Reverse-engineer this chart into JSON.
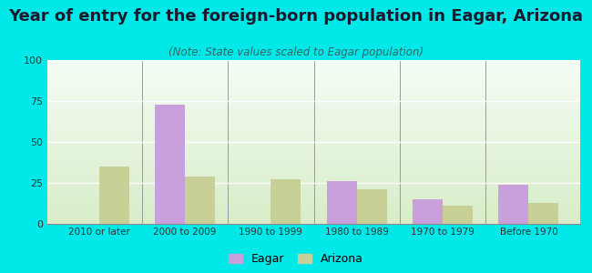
{
  "title": "Year of entry for the foreign-born population in Eagar, Arizona",
  "subtitle": "(Note: State values scaled to Eagar population)",
  "categories": [
    "2010 or later",
    "2000 to 2009",
    "1990 to 1999",
    "1980 to 1989",
    "1970 to 1979",
    "Before 1970"
  ],
  "eagar_values": [
    0,
    73,
    0,
    26,
    15,
    24
  ],
  "arizona_values": [
    35,
    29,
    27,
    21,
    11,
    13
  ],
  "eagar_color": "#c9a0dc",
  "arizona_color": "#c8d098",
  "ylim": [
    0,
    100
  ],
  "yticks": [
    0,
    25,
    50,
    75,
    100
  ],
  "background_outer": "#00e8e8",
  "background_top": "#f5fdf5",
  "background_bottom": "#d8edc8",
  "title_fontsize": 13,
  "subtitle_fontsize": 8.5,
  "bar_width": 0.35,
  "legend_eagar": "Eagar",
  "legend_arizona": "Arizona"
}
